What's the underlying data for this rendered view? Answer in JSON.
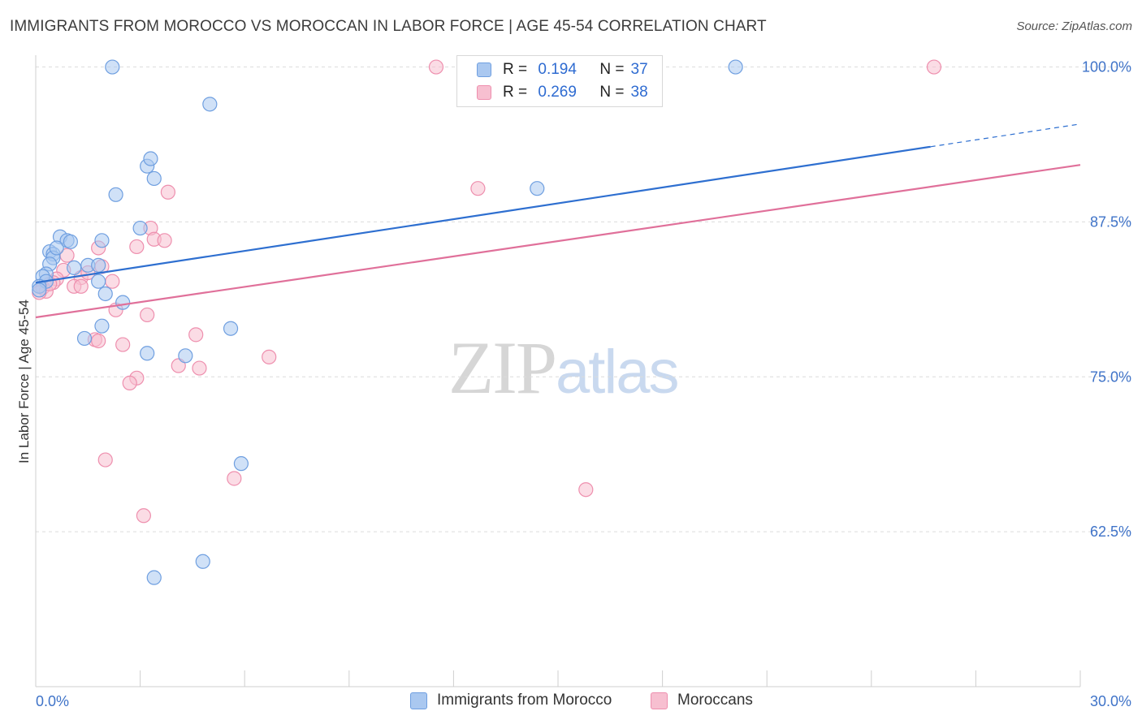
{
  "header": {
    "title": "IMMIGRANTS FROM MOROCCO VS MOROCCAN IN LABOR FORCE | AGE 45-54 CORRELATION CHART",
    "source": "Source: ZipAtlas.com"
  },
  "watermark": {
    "zip": "ZIP",
    "atlas": "atlas"
  },
  "legend": {
    "rows": [
      {
        "r_label": "R =",
        "r_value": "0.194",
        "n_label": "N =",
        "n_value": "37"
      },
      {
        "r_label": "R =",
        "r_value": "0.269",
        "n_label": "N =",
        "n_value": "38"
      }
    ]
  },
  "colors": {
    "blue_fill": "#aac8f0",
    "blue_stroke": "#6f9fe0",
    "blue_line": "#2e6fd0",
    "pink_fill": "#f7bfd0",
    "pink_stroke": "#ee8fae",
    "pink_line": "#e0709a",
    "grid": "#dcdcdc",
    "tick_text": "#3f73c8"
  },
  "chart_data": {
    "type": "scatter",
    "title": "IMMIGRANTS FROM MOROCCO VS MOROCCAN IN LABOR FORCE | AGE 45-54 CORRELATION CHART",
    "xlabel": "",
    "ylabel": "In Labor Force | Age 45-54",
    "xlim": [
      0,
      30
    ],
    "ylim": [
      50,
      102
    ],
    "x_tick_labels": [
      "0.0%",
      "30.0%"
    ],
    "y_ticks": [
      62.5,
      75.0,
      87.5,
      100.0
    ],
    "y_tick_labels": [
      "62.5%",
      "75.0%",
      "87.5%",
      "100.0%"
    ],
    "grid": true,
    "legend_position": "bottom",
    "series": [
      {
        "name": "Immigrants from Morocco",
        "color": "#aac8f0",
        "trend": {
          "x0": 0,
          "y0": 82.6,
          "x1": 30,
          "y1": 95.4,
          "solid_until": 25.7
        },
        "points": [
          [
            2.2,
            100.0
          ],
          [
            20.1,
            100.0
          ],
          [
            5.0,
            97.0
          ],
          [
            3.2,
            92.0
          ],
          [
            3.4,
            91.0
          ],
          [
            3.3,
            92.6
          ],
          [
            2.3,
            89.7
          ],
          [
            14.4,
            90.2
          ],
          [
            3.0,
            87.0
          ],
          [
            0.7,
            86.3
          ],
          [
            0.9,
            86.0
          ],
          [
            0.4,
            85.1
          ],
          [
            0.5,
            84.9
          ],
          [
            0.5,
            84.6
          ],
          [
            0.4,
            84.1
          ],
          [
            1.0,
            85.9
          ],
          [
            1.9,
            86.0
          ],
          [
            0.6,
            85.4
          ],
          [
            1.1,
            83.8
          ],
          [
            1.5,
            84.0
          ],
          [
            1.8,
            84.0
          ],
          [
            0.3,
            83.3
          ],
          [
            0.2,
            83.1
          ],
          [
            0.3,
            82.7
          ],
          [
            0.1,
            82.3
          ],
          [
            1.8,
            82.7
          ],
          [
            2.0,
            81.7
          ],
          [
            2.5,
            81.0
          ],
          [
            5.6,
            78.9
          ],
          [
            1.9,
            79.1
          ],
          [
            1.4,
            78.1
          ],
          [
            3.2,
            76.9
          ],
          [
            4.3,
            76.7
          ],
          [
            5.9,
            68.0
          ],
          [
            4.8,
            60.1
          ],
          [
            3.4,
            58.8
          ],
          [
            0.1,
            82.0
          ]
        ]
      },
      {
        "name": "Moroccans",
        "color": "#f7bfd0",
        "trend": {
          "x0": 0,
          "y0": 79.8,
          "x1": 30,
          "y1": 92.1,
          "solid_until": 30
        },
        "points": [
          [
            11.5,
            100.0
          ],
          [
            25.8,
            100.0
          ],
          [
            12.7,
            90.2
          ],
          [
            3.8,
            89.9
          ],
          [
            3.3,
            87.0
          ],
          [
            3.4,
            86.1
          ],
          [
            3.7,
            86.0
          ],
          [
            2.9,
            85.5
          ],
          [
            1.8,
            85.4
          ],
          [
            0.9,
            84.8
          ],
          [
            1.9,
            83.9
          ],
          [
            0.8,
            83.6
          ],
          [
            1.3,
            83.0
          ],
          [
            0.6,
            82.9
          ],
          [
            0.5,
            82.6
          ],
          [
            1.1,
            82.3
          ],
          [
            1.3,
            82.3
          ],
          [
            2.2,
            82.7
          ],
          [
            0.2,
            82.2
          ],
          [
            0.3,
            81.9
          ],
          [
            0.1,
            81.8
          ],
          [
            2.3,
            80.4
          ],
          [
            3.2,
            80.0
          ],
          [
            4.6,
            78.4
          ],
          [
            1.7,
            78.0
          ],
          [
            1.8,
            77.9
          ],
          [
            2.5,
            77.6
          ],
          [
            6.7,
            76.6
          ],
          [
            4.1,
            75.9
          ],
          [
            4.7,
            75.7
          ],
          [
            2.9,
            74.9
          ],
          [
            2.7,
            74.5
          ],
          [
            2.0,
            68.3
          ],
          [
            5.7,
            66.8
          ],
          [
            15.8,
            65.9
          ],
          [
            3.1,
            63.8
          ],
          [
            0.4,
            82.5
          ],
          [
            1.5,
            83.4
          ]
        ]
      }
    ]
  },
  "bottom_legend": [
    {
      "label": "Immigrants from Morocco"
    },
    {
      "label": "Moroccans"
    }
  ]
}
